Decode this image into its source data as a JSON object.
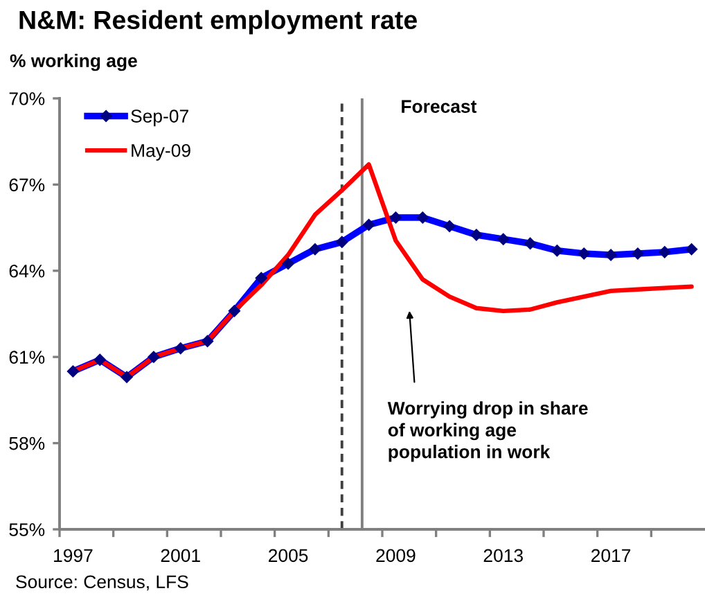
{
  "chart_data": {
    "type": "line",
    "title": "N&M: Resident employment rate",
    "ylabel": "% working age",
    "x": [
      1997,
      1998,
      1999,
      2000,
      2001,
      2002,
      2003,
      2004,
      2005,
      2006,
      2007,
      2008,
      2009,
      2010,
      2011,
      2012,
      2013,
      2014,
      2015,
      2016,
      2017,
      2018,
      2019,
      2020
    ],
    "series": [
      {
        "name": "Sep-07",
        "color": "#0000ff",
        "marker": "diamond",
        "values": [
          60.5,
          60.9,
          60.3,
          61.0,
          61.3,
          61.55,
          62.6,
          63.75,
          64.25,
          64.75,
          65.0,
          65.6,
          65.85,
          65.85,
          65.55,
          65.25,
          65.1,
          64.95,
          64.7,
          64.6,
          64.55,
          64.6,
          64.65,
          64.75
        ]
      },
      {
        "name": "May-09",
        "color": "#ff0000",
        "marker": "none",
        "values": [
          60.5,
          60.9,
          60.3,
          61.0,
          61.3,
          61.55,
          62.6,
          63.5,
          64.55,
          65.95,
          66.8,
          67.7,
          65.05,
          63.7,
          63.1,
          62.7,
          62.6,
          62.65,
          62.9,
          63.1,
          63.3,
          63.35,
          63.4,
          63.45
        ]
      }
    ],
    "xlim": [
      1996.5,
      2020.5
    ],
    "xticks": [
      {
        "value": 1996.5,
        "label": null
      },
      1997,
      {
        "value": 1998.5,
        "label": null
      },
      {
        "value": 2000.5,
        "label": null
      },
      2001,
      {
        "value": 2002.5,
        "label": null
      },
      {
        "value": 2004.5,
        "label": null
      },
      2005,
      {
        "value": 2006.5,
        "label": null
      },
      {
        "value": 2008.5,
        "label": null
      },
      2009,
      {
        "value": 2010.5,
        "label": null
      },
      {
        "value": 2012.5,
        "label": null
      },
      2013,
      {
        "value": 2014.5,
        "label": null
      },
      {
        "value": 2016.5,
        "label": null
      },
      2017,
      {
        "value": 2018.5,
        "label": null
      }
    ],
    "ylim": [
      55,
      70
    ],
    "yticks": [
      {
        "value": 55,
        "label": "55%"
      },
      {
        "value": 58,
        "label": "58%"
      },
      {
        "value": 61,
        "label": "61%"
      },
      {
        "value": 64,
        "label": "64%"
      },
      {
        "value": 67,
        "label": "67%"
      },
      {
        "value": 70,
        "label": "70%"
      }
    ],
    "ref_lines": [
      {
        "axis": "x",
        "value": 2007,
        "line_style": "dashed",
        "color": "#404040"
      },
      {
        "axis": "x",
        "value": 2007.75,
        "label": "Forecast",
        "line_style": "solid",
        "color": "#808080"
      }
    ],
    "annotations": [
      "Worrying drop in share\nof working age\npopulation in work",
      "Source: Census, LFS"
    ],
    "legend": "top left",
    "grid": false,
    "line_style": "solid"
  }
}
